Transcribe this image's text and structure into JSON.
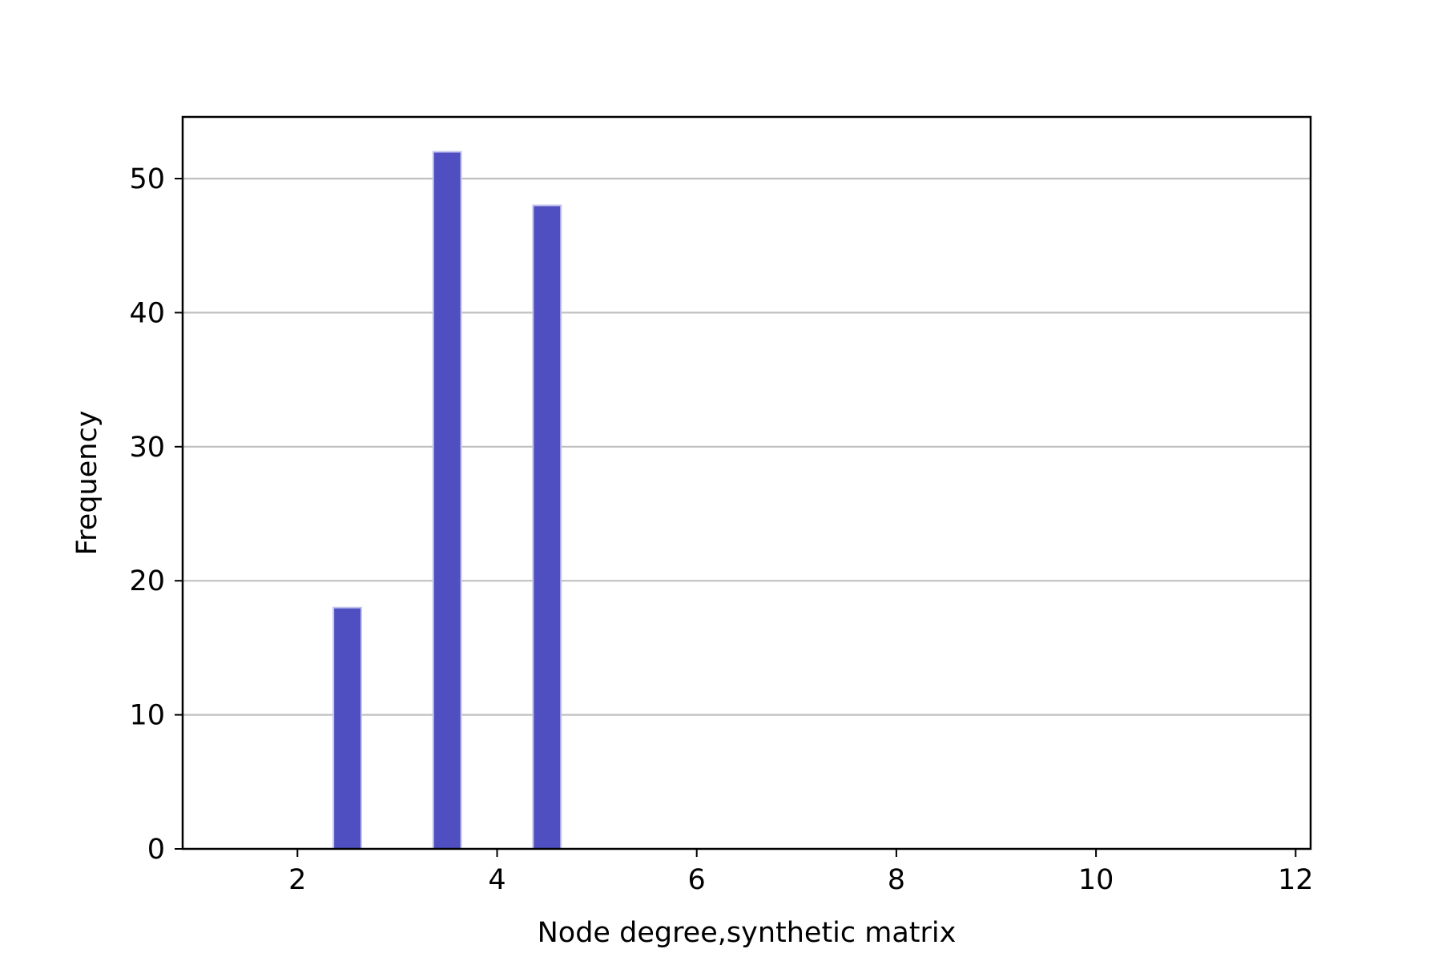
{
  "chart_data": {
    "type": "bar",
    "title": "",
    "xlabel": "Node degree,synthetic matrix",
    "ylabel": "Frequency",
    "x": [
      2.5,
      3.5,
      4.5
    ],
    "bar_width": 0.28,
    "values": [
      18,
      52,
      48
    ],
    "xlim": [
      0.85,
      12.15
    ],
    "ylim": [
      0,
      54.6
    ],
    "xticks": [
      2,
      4,
      6,
      8,
      10,
      12
    ],
    "xtick_labels": [
      "2",
      "4",
      "6",
      "8",
      "10",
      "12"
    ],
    "yticks": [
      0,
      10,
      20,
      30,
      40,
      50
    ],
    "ytick_labels": [
      "0",
      "10",
      "20",
      "30",
      "40",
      "50"
    ],
    "grid": "y",
    "legend": "none",
    "colors": {
      "bar": "#4f4fc1",
      "bar_edge": "#c4c4ee",
      "grid": "#c0c0c0",
      "axis": "#000000"
    }
  }
}
